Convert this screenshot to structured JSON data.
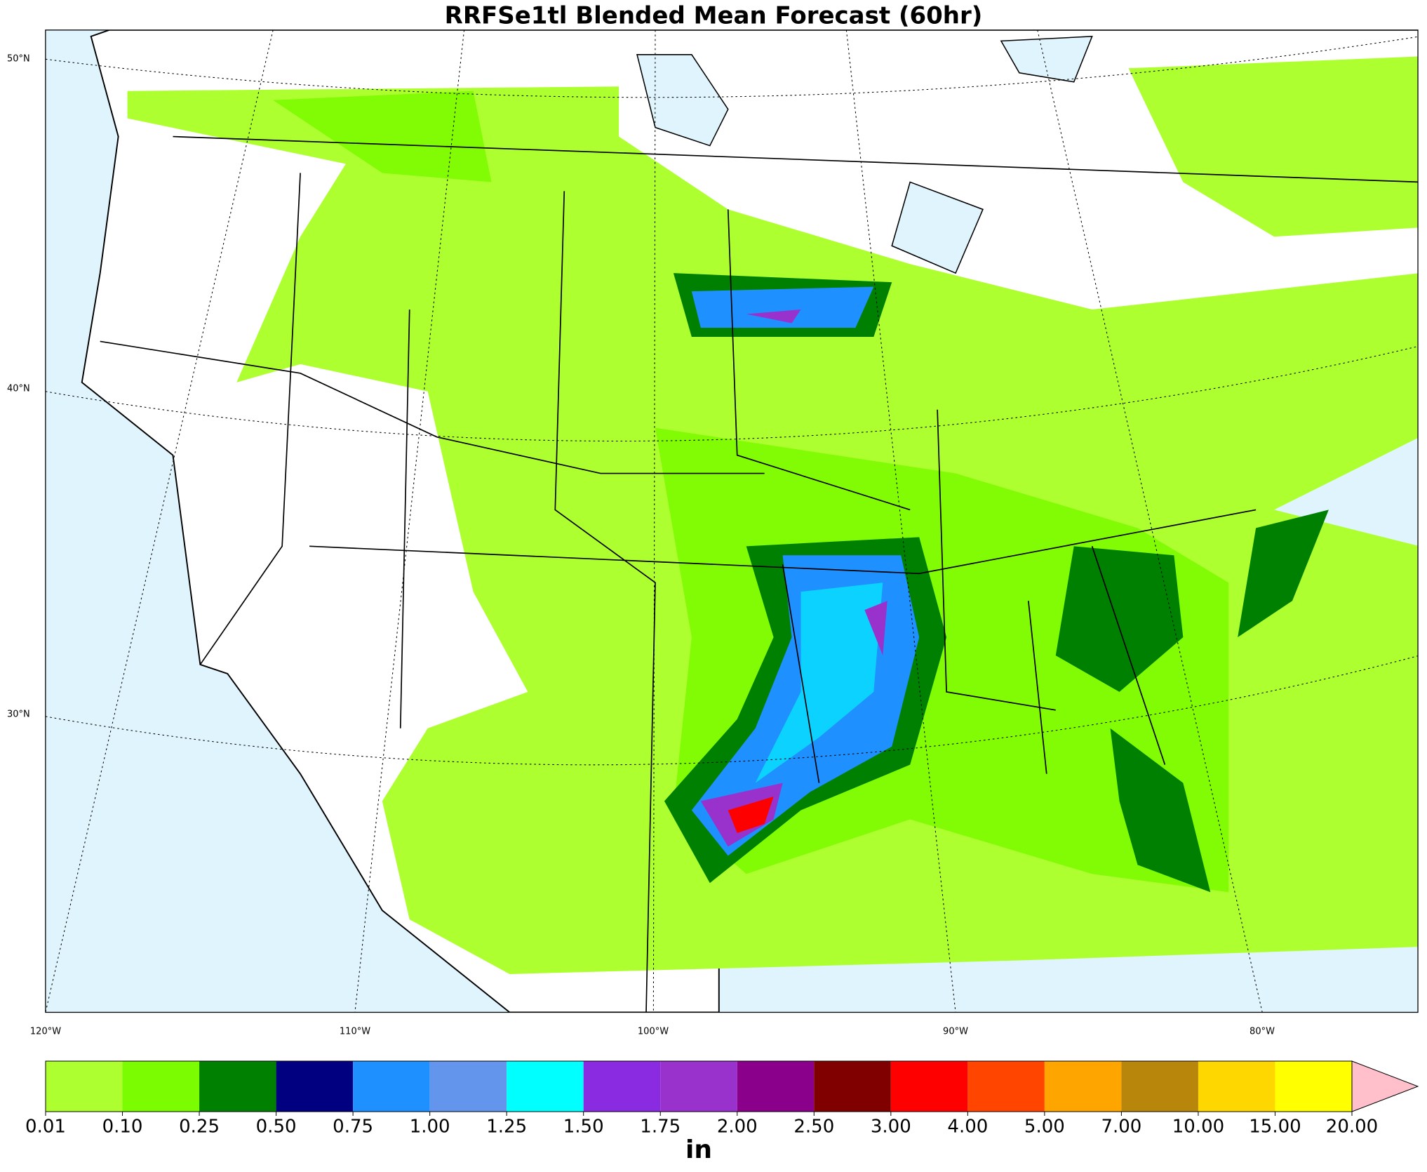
{
  "map": {
    "title": "RRFSe1tl Blended Mean Forecast (60hr)",
    "lat_labels": [
      "50°N",
      "40°N",
      "30°N"
    ],
    "lon_labels": [
      "120°W",
      "110°W",
      "100°W",
      "90°W",
      "80°W"
    ],
    "colorbar": {
      "unit": "in",
      "ticks": [
        {
          "value": 0.01,
          "label": "0.01"
        },
        {
          "value": 0.1,
          "label": "0.10"
        },
        {
          "value": 0.25,
          "label": "0.25"
        },
        {
          "value": 0.5,
          "label": "0.50"
        },
        {
          "value": 0.75,
          "label": "0.75"
        },
        {
          "value": 1,
          "label": "1.00"
        },
        {
          "value": 1.25,
          "label": "1.25"
        },
        {
          "value": 1.5,
          "label": "1.50"
        },
        {
          "value": 1.75,
          "label": "1.75"
        },
        {
          "value": 2,
          "label": "2.00"
        },
        {
          "value": 2.5,
          "label": "2.50"
        },
        {
          "value": 3,
          "label": "3.00"
        },
        {
          "value": 4,
          "label": "4.00"
        },
        {
          "value": 5,
          "label": "5.00"
        },
        {
          "value": 7,
          "label": "7.00"
        },
        {
          "value": 10,
          "label": "10.00"
        },
        {
          "value": 15,
          "label": "15.00"
        },
        {
          "value": 20,
          "label": "20.00"
        }
      ],
      "colors": [
        "#adff2f",
        "#7cfc00",
        "#008000",
        "#000080",
        "#1e90ff",
        "#6495ed",
        "#00ffff",
        "#8a2be2",
        "#9932cc",
        "#8b008b",
        "#800000",
        "#ff0000",
        "#ff4500",
        "#ffa500",
        "#b8860b",
        "#ffd700",
        "#ffff00"
      ],
      "over_color": "#ffc0cb"
    }
  }
}
